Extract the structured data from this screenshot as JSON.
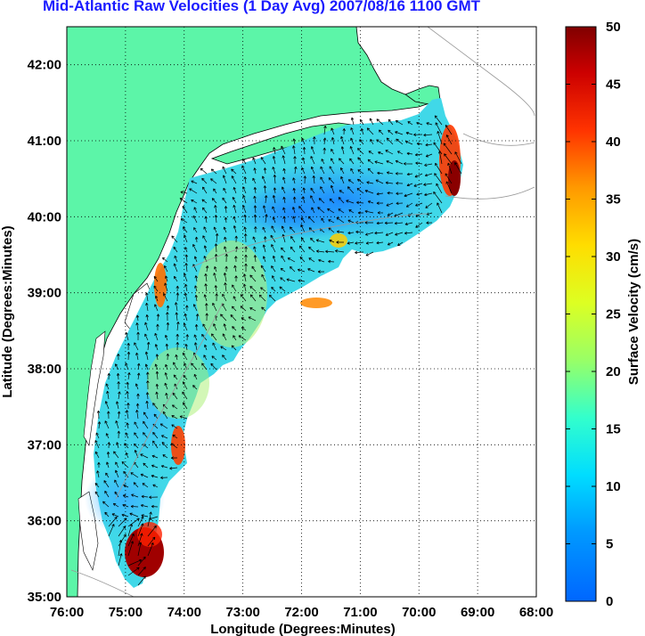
{
  "title": "Mid-Atlantic Raw Velocities (1 Day Avg) 2007/08/16 1100 GMT",
  "map": {
    "xlabel": "Longitude (Degrees:Minutes)",
    "ylabel": "Latitude (Degrees:Minutes)",
    "x_ticks": [
      "76:00",
      "75:00",
      "74:00",
      "73:00",
      "72:00",
      "71:00",
      "70:00",
      "69:00",
      "68:00"
    ],
    "y_ticks": [
      "42:00",
      "41:00",
      "40:00",
      "39:00",
      "38:00",
      "37:00",
      "36:00",
      "35:00"
    ],
    "lon_range_deg_west": [
      76,
      68
    ],
    "lat_range_deg_north": [
      35,
      42.5
    ],
    "grid": "dotted",
    "land_color": "#5cf5a8"
  },
  "colorbar": {
    "label": "Surface Velocity (cm/s)",
    "ticks": [
      "0",
      "5",
      "10",
      "15",
      "20",
      "25",
      "30",
      "35",
      "40",
      "45",
      "50"
    ],
    "range": [
      0,
      50
    ],
    "colormap": "jet"
  }
}
